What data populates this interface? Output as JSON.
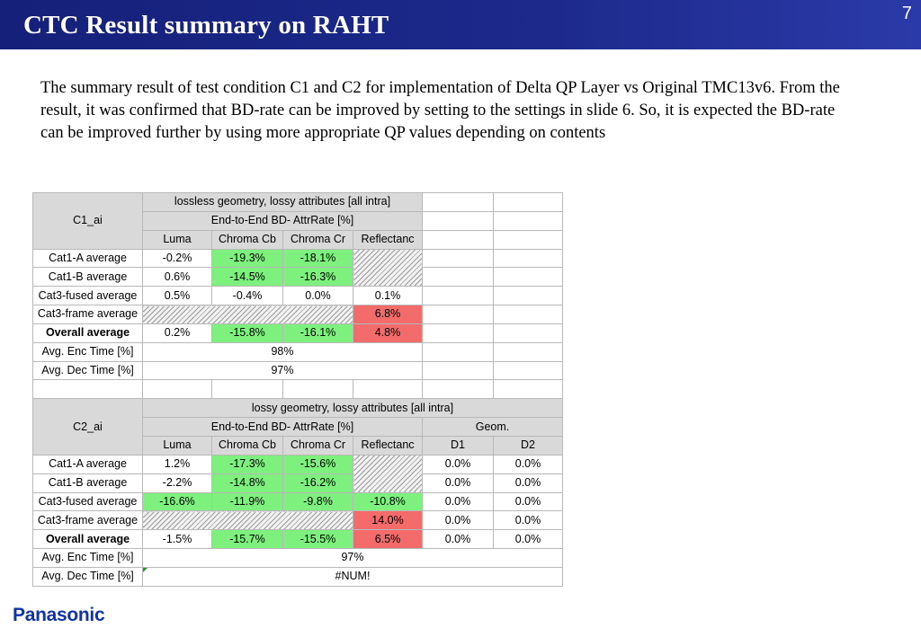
{
  "header": {
    "title": "CTC Result summary on RAHT",
    "page_number": "7"
  },
  "description": "The summary result of test condition C1 and C2 for implementation of Delta QP Layer vs Original TMC13v6. From the result, it was confirmed that BD-rate can be improved by setting to the settings in slide 6. So, it is expected the BD-rate can be improved further by using more appropriate QP values depending on contents",
  "footer": {
    "logo_text": "Panasonic"
  },
  "colors": {
    "header_bg": "#1d2a8c",
    "good": "#7ef07e",
    "bad": "#f46b6b",
    "header_cell": "#d9d9d9",
    "logo": "#1233a8"
  },
  "c1": {
    "label": "C1_ai",
    "title": "lossless geometry, lossy attributes [all intra]",
    "subtitle": "End-to-End BD- AttrRate [%]",
    "columns": [
      "Luma",
      "Chroma Cb",
      "Chroma Cr",
      "Reflectanc"
    ],
    "rows": [
      {
        "name": "Cat1-A average",
        "luma": "-0.2%",
        "cb": "-19.3%",
        "cr": "-18.1%",
        "refl": ""
      },
      {
        "name": "Cat1-B average",
        "luma": "0.6%",
        "cb": "-14.5%",
        "cr": "-16.3%",
        "refl": ""
      },
      {
        "name": "Cat3-fused average",
        "luma": "0.5%",
        "cb": "-0.4%",
        "cr": "0.0%",
        "refl": "0.1%"
      },
      {
        "name": "Cat3-frame average",
        "luma": "",
        "cb": "",
        "cr": "",
        "refl": "6.8%"
      },
      {
        "name": "Overall average",
        "luma": "0.2%",
        "cb": "-15.8%",
        "cr": "-16.1%",
        "refl": "4.8%"
      }
    ],
    "enc_label": "Avg. Enc Time [%]",
    "enc_value": "98%",
    "dec_label": "Avg. Dec Time [%]",
    "dec_value": "97%"
  },
  "c2": {
    "label": "C2_ai",
    "title": "lossy geometry, lossy attributes [all intra]",
    "subtitle": "End-to-End BD- AttrRate [%]",
    "geom_label": "Geom.",
    "columns": [
      "Luma",
      "Chroma Cb",
      "Chroma Cr",
      "Reflectanc",
      "D1",
      "D2"
    ],
    "rows": [
      {
        "name": "Cat1-A average",
        "luma": "1.2%",
        "cb": "-17.3%",
        "cr": "-15.6%",
        "refl": "",
        "d1": "0.0%",
        "d2": "0.0%"
      },
      {
        "name": "Cat1-B average",
        "luma": "-2.2%",
        "cb": "-14.8%",
        "cr": "-16.2%",
        "refl": "",
        "d1": "0.0%",
        "d2": "0.0%"
      },
      {
        "name": "Cat3-fused average",
        "luma": "-16.6%",
        "cb": "-11.9%",
        "cr": "-9.8%",
        "refl": "-10.8%",
        "d1": "0.0%",
        "d2": "0.0%"
      },
      {
        "name": "Cat3-frame average",
        "luma": "",
        "cb": "",
        "cr": "",
        "refl": "14.0%",
        "d1": "0.0%",
        "d2": "0.0%"
      },
      {
        "name": "Overall average",
        "luma": "-1.5%",
        "cb": "-15.7%",
        "cr": "-15.5%",
        "refl": "6.5%",
        "d1": "0.0%",
        "d2": "0.0%"
      }
    ],
    "enc_label": "Avg. Enc Time [%]",
    "enc_value": "97%",
    "dec_label": "Avg. Dec Time [%]",
    "dec_value": "#NUM!"
  }
}
